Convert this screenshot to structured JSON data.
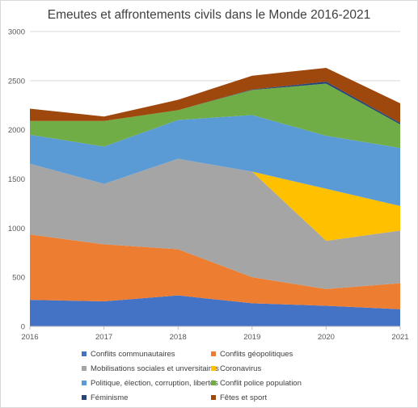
{
  "chart_data": {
    "type": "area",
    "stacked": true,
    "title": "Emeutes et affrontements civils dans le Monde 2016-2021",
    "xlabel": "",
    "ylabel": "",
    "x": [
      "2016",
      "2017",
      "2018",
      "2019",
      "2020",
      "2021"
    ],
    "ylim": [
      0,
      3000
    ],
    "yticks": [
      0,
      500,
      1000,
      1500,
      2000,
      2500,
      3000
    ],
    "grid": true,
    "legend_position": "bottom",
    "series": [
      {
        "name": "Conflits communautaires",
        "color": "#4472C4",
        "values": [
          270,
          255,
          315,
          235,
          210,
          175
        ]
      },
      {
        "name": "Conflits géopolitiques",
        "color": "#ED7D31",
        "values": [
          665,
          580,
          470,
          265,
          170,
          265
        ]
      },
      {
        "name": "Mobilisations sociales et unversitaires",
        "color": "#A5A5A5",
        "values": [
          720,
          615,
          920,
          1075,
          490,
          535
        ]
      },
      {
        "name": "Coronavirus",
        "color": "#FFC000",
        "values": [
          0,
          0,
          0,
          0,
          530,
          250
        ]
      },
      {
        "name": "Politique, élection, corruption, libertés",
        "color": "#5B9BD5",
        "values": [
          295,
          380,
          395,
          575,
          540,
          590
        ]
      },
      {
        "name": "Conflit police population",
        "color": "#70AD47",
        "values": [
          140,
          260,
          100,
          255,
          530,
          240
        ]
      },
      {
        "name": "Féminisme",
        "color": "#264478",
        "values": [
          0,
          0,
          0,
          5,
          20,
          15
        ]
      },
      {
        "name": "Fêtes et sport",
        "color": "#9E480E",
        "values": [
          125,
          45,
          105,
          140,
          140,
          200
        ]
      }
    ]
  }
}
